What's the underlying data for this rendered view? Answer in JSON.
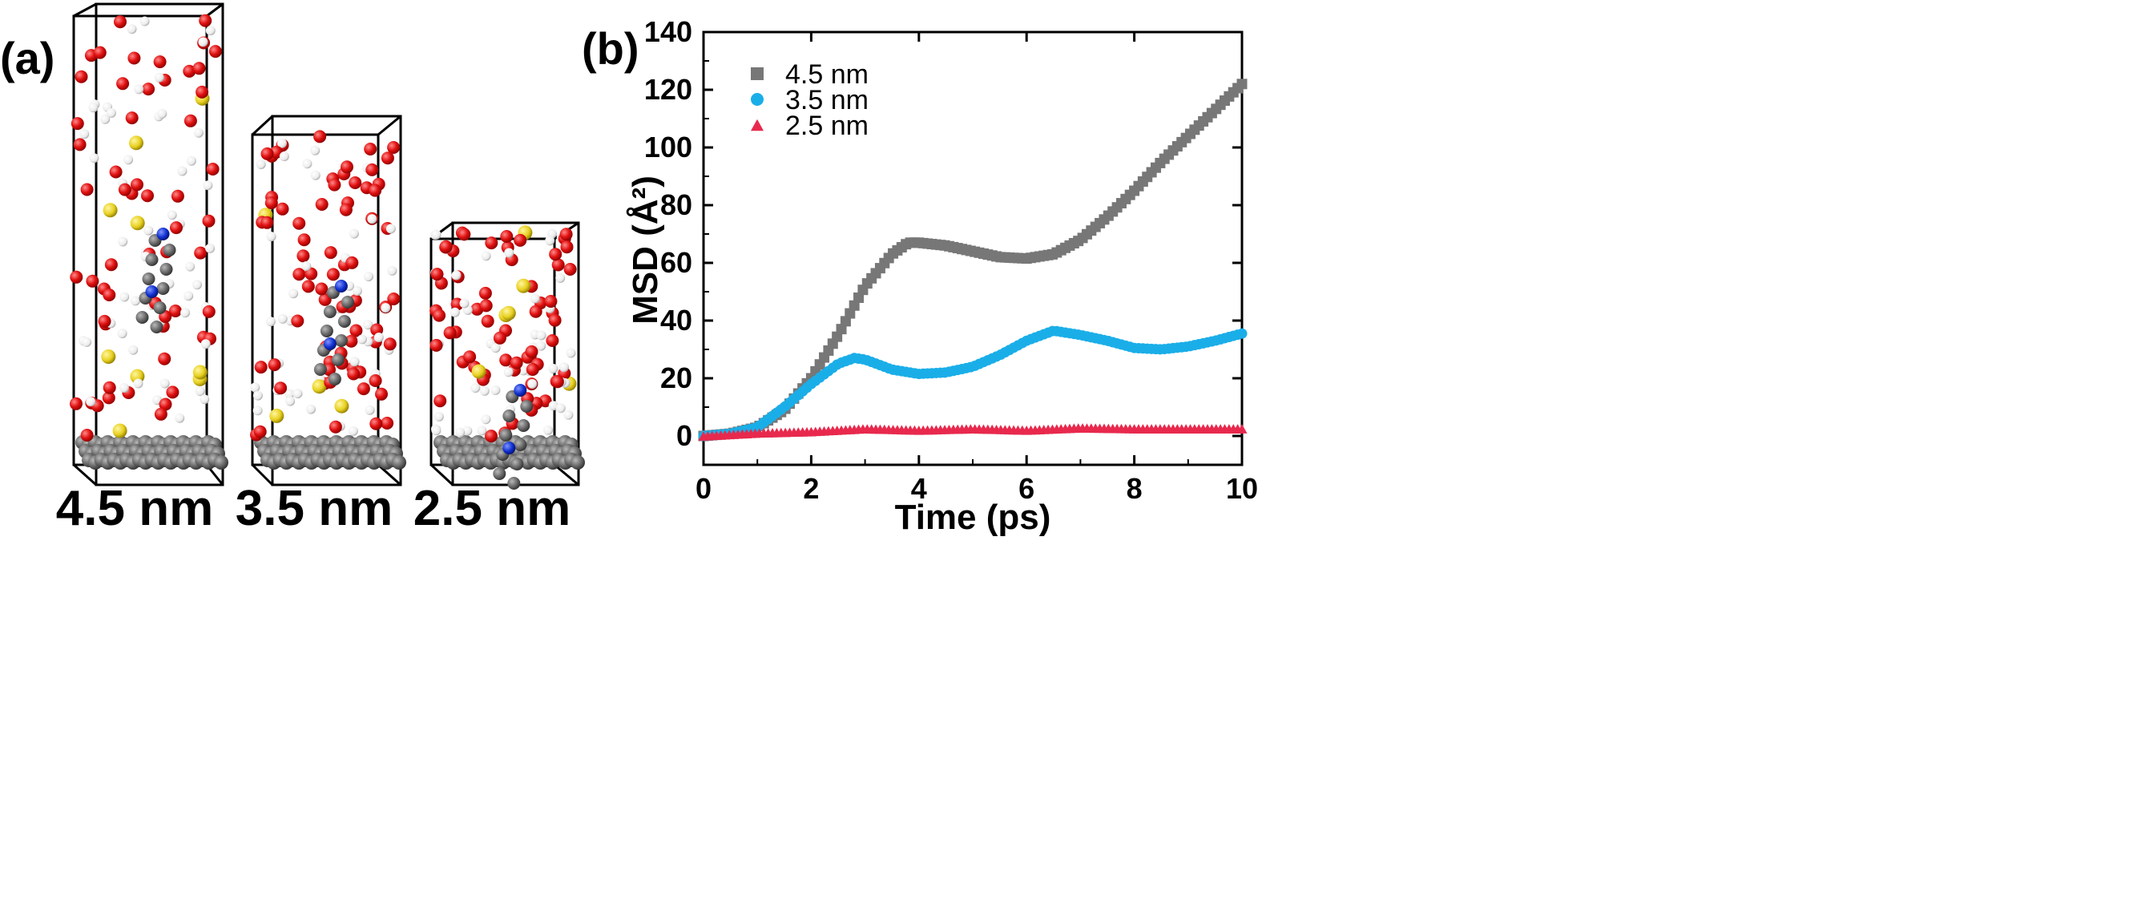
{
  "panel_a": {
    "label": "(a)",
    "boxes": [
      {
        "label": "4.5 nm"
      },
      {
        "label": "3.5 nm"
      },
      {
        "label": "2.5 nm"
      }
    ]
  },
  "panel_b": {
    "label": "(b)"
  },
  "colors": {
    "oxygen": "#e01010",
    "hydrogen": "#f2f2f2",
    "sulfur": "#e8d020",
    "nitrogen": "#1030d0",
    "carbon": "#606060"
  },
  "chart_data": {
    "type": "scatter",
    "xlabel": "Time (ps)",
    "ylabel": "MSD (Å²)",
    "xlim": [
      0,
      10
    ],
    "ylim": [
      -10,
      140
    ],
    "xticks": [
      0,
      2,
      4,
      6,
      8,
      10
    ],
    "yticks": [
      0,
      20,
      40,
      60,
      80,
      100,
      120,
      140
    ],
    "legend_position": "top-left",
    "grid": false,
    "series": [
      {
        "name": "4.5 nm",
        "marker": "square",
        "color": "#777777",
        "points": [
          [
            0,
            0
          ],
          [
            0.5,
            0.8
          ],
          [
            1,
            3
          ],
          [
            1.5,
            9
          ],
          [
            2,
            20
          ],
          [
            2.5,
            35
          ],
          [
            3,
            52
          ],
          [
            3.5,
            63
          ],
          [
            3.8,
            67
          ],
          [
            4,
            67
          ],
          [
            4.5,
            66
          ],
          [
            5,
            64
          ],
          [
            5.5,
            62
          ],
          [
            6,
            61.5
          ],
          [
            6.5,
            63
          ],
          [
            7,
            68
          ],
          [
            7.5,
            76
          ],
          [
            8,
            85
          ],
          [
            8.5,
            95
          ],
          [
            9,
            104
          ],
          [
            9.5,
            113
          ],
          [
            10,
            122
          ]
        ]
      },
      {
        "name": "3.5 nm",
        "marker": "circle",
        "color": "#1aaee8",
        "points": [
          [
            0,
            0
          ],
          [
            0.5,
            0.8
          ],
          [
            1,
            3
          ],
          [
            1.5,
            10
          ],
          [
            2,
            18
          ],
          [
            2.5,
            25
          ],
          [
            2.8,
            27
          ],
          [
            3,
            26.5
          ],
          [
            3.5,
            23
          ],
          [
            4,
            21.5
          ],
          [
            4.5,
            22
          ],
          [
            5,
            24
          ],
          [
            5.5,
            28
          ],
          [
            6,
            33
          ],
          [
            6.5,
            36.5
          ],
          [
            7,
            35
          ],
          [
            7.5,
            33
          ],
          [
            8,
            30.5
          ],
          [
            8.5,
            30
          ],
          [
            9,
            31
          ],
          [
            9.5,
            33
          ],
          [
            10,
            35.5
          ]
        ]
      },
      {
        "name": "2.5 nm",
        "marker": "triangle",
        "color": "#e8294d",
        "points": [
          [
            0,
            0
          ],
          [
            1,
            1
          ],
          [
            2,
            1.5
          ],
          [
            3,
            2.5
          ],
          [
            4,
            2
          ],
          [
            5,
            2.5
          ],
          [
            6,
            2
          ],
          [
            7,
            2.8
          ],
          [
            8,
            2.5
          ],
          [
            9,
            2.5
          ],
          [
            10,
            2.5
          ]
        ]
      }
    ]
  }
}
